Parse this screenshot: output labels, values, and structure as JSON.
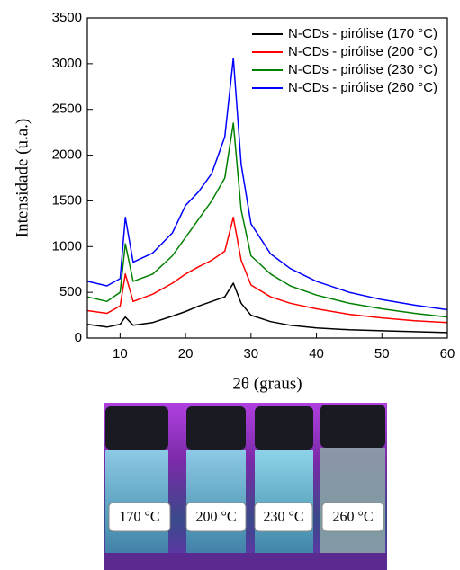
{
  "chart_data": {
    "type": "line",
    "x_label": "2θ (graus)",
    "y_label": "Intensidade (u.a.)",
    "x": [
      5,
      8,
      10,
      10.8,
      12,
      15,
      18,
      20,
      22,
      24,
      26,
      27.3,
      28.5,
      30,
      33,
      36,
      40,
      45,
      50,
      55,
      60
    ],
    "series": [
      {
        "name": "N-CDs - pirólise (170 °C)",
        "color": "#000000",
        "values": [
          150,
          120,
          150,
          230,
          140,
          170,
          240,
          290,
          350,
          400,
          450,
          600,
          380,
          250,
          180,
          140,
          110,
          90,
          80,
          70,
          60
        ]
      },
      {
        "name": "N-CDs - pirólise (200 °C)",
        "color": "#ff0000",
        "values": [
          300,
          270,
          350,
          700,
          400,
          480,
          600,
          700,
          780,
          850,
          950,
          1320,
          850,
          580,
          450,
          380,
          320,
          260,
          220,
          190,
          170
        ]
      },
      {
        "name": "N-CDs - pirólise (230 °C)",
        "color": "#008000",
        "values": [
          450,
          400,
          500,
          1030,
          620,
          700,
          900,
          1100,
          1300,
          1500,
          1750,
          2350,
          1400,
          900,
          700,
          570,
          470,
          380,
          320,
          270,
          230
        ]
      },
      {
        "name": "N-CDs - pirólise (260 °C)",
        "color": "#0000ff",
        "values": [
          620,
          570,
          650,
          1320,
          830,
          930,
          1150,
          1450,
          1600,
          1800,
          2200,
          3060,
          1900,
          1250,
          920,
          760,
          620,
          500,
          420,
          360,
          310
        ]
      }
    ],
    "xlim": [
      5,
      60
    ],
    "xticks": [
      10,
      20,
      30,
      40,
      50,
      60
    ],
    "ylim": [
      0,
      3500
    ],
    "yticks": [
      0,
      500,
      1000,
      1500,
      2000,
      2500,
      3000,
      3500
    ],
    "legend": "upper right"
  },
  "image": {
    "labels": [
      "170 °C",
      "200 °C",
      "230 °C",
      "260 °C"
    ]
  }
}
